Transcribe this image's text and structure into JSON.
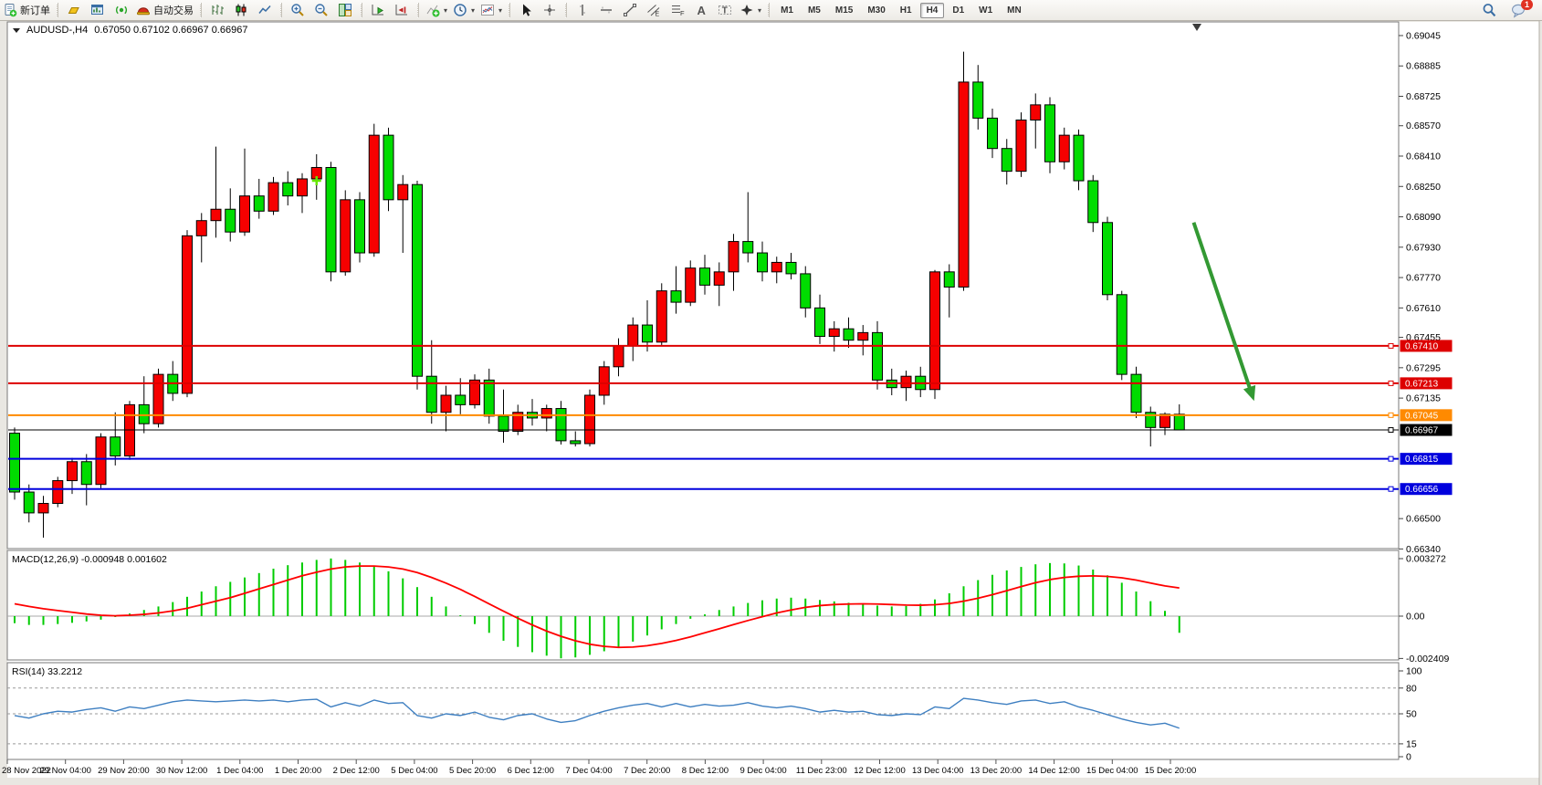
{
  "toolbar": {
    "groups": [
      [
        {
          "icon": "new-order",
          "name": "new-order",
          "label": "新订单"
        }
      ],
      [
        {
          "icon": "gold",
          "name": "gold"
        },
        {
          "icon": "chart-window",
          "name": "chart-window"
        },
        {
          "icon": "signal",
          "name": "signal"
        },
        {
          "icon": "autotrade-hat",
          "name": "autotrade",
          "label": "自动交易"
        }
      ],
      [
        {
          "icon": "bar-chart",
          "name": "bar-chart-mode"
        },
        {
          "icon": "candle-chart",
          "name": "candle-chart-mode"
        },
        {
          "icon": "line-chart",
          "name": "line-chart-mode"
        }
      ],
      [
        {
          "icon": "zoom-in",
          "name": "zoom-in"
        },
        {
          "icon": "zoom-out",
          "name": "zoom-out"
        },
        {
          "icon": "tile-windows",
          "name": "tile-windows"
        }
      ],
      [
        {
          "icon": "auto-scroll",
          "name": "auto-scroll"
        },
        {
          "icon": "chart-shift",
          "name": "chart-shift"
        }
      ],
      [
        {
          "icon": "indicators",
          "name": "indicators",
          "caret": true
        },
        {
          "icon": "periods",
          "name": "periods",
          "caret": true
        },
        {
          "icon": "templates",
          "name": "templates",
          "caret": true
        }
      ],
      [
        {
          "icon": "cursor",
          "name": "cursor-tool"
        },
        {
          "icon": "crosshair",
          "name": "crosshair-tool"
        }
      ],
      [
        {
          "icon": "vline",
          "name": "vertical-line-tool"
        },
        {
          "icon": "hline",
          "name": "horizontal-line-tool"
        },
        {
          "icon": "trendline",
          "name": "trendline-tool"
        },
        {
          "icon": "channel",
          "name": "channel-tool"
        },
        {
          "icon": "fibonacci",
          "name": "fibonacci-tool"
        },
        {
          "icon": "text",
          "name": "text-tool"
        },
        {
          "icon": "text-label",
          "name": "label-tool"
        },
        {
          "icon": "shapes",
          "name": "shapes-tool",
          "caret": true
        }
      ]
    ],
    "timeframes": [
      "M1",
      "M5",
      "M15",
      "M30",
      "H1",
      "H4",
      "D1",
      "W1",
      "MN"
    ],
    "active_timeframe": "H4",
    "notification_badge": "1"
  },
  "chart": {
    "symbol_title": "AUDUSD-,H4",
    "quote": "0.67050 0.67102 0.66967 0.66967",
    "macd_label": "MACD(12,26,9) -0.000948 0.001602",
    "rsi_label": "RSI(14) 33.2212"
  },
  "chart_data": {
    "type": "candlestick",
    "symbol": "AUDUSD-",
    "timeframe": "H4",
    "current_bar": {
      "open": 0.6705,
      "high": 0.67102,
      "low": 0.66967,
      "close": 0.66967
    },
    "colors": {
      "bull": "#f60000",
      "bear": "#00dc00",
      "wick": "#000000",
      "macd_hist": "#00cc00",
      "macd_signal": "#ff0000",
      "rsi_line": "#3e7fc1",
      "arrow": "#339933",
      "marker": "#66e600",
      "level_red": "#dd0000",
      "level_orange": "#ff8a00",
      "level_black": "#000000",
      "level_blue": "#0000dd"
    },
    "price_axis": {
      "ylim": [
        0.66342,
        0.69117
      ],
      "ticks": [
        "0.69045",
        "0.68885",
        "0.68725",
        "0.68570",
        "0.68410",
        "0.68250",
        "0.68090",
        "0.67930",
        "0.67770",
        "0.67610",
        "0.67455",
        "0.67295",
        "0.67135",
        "0.66500",
        "0.66340"
      ]
    },
    "levels": [
      {
        "price": 0.6741,
        "label": "0.67410",
        "color": "#dd0000",
        "width": 2
      },
      {
        "price": 0.67213,
        "label": "0.67213",
        "color": "#dd0000",
        "width": 2
      },
      {
        "price": 0.67045,
        "label": "0.67045",
        "color": "#ff8a00",
        "width": 2
      },
      {
        "price": 0.66967,
        "label": "0.66967",
        "color": "#000000",
        "width": 1
      },
      {
        "price": 0.66815,
        "label": "0.66815",
        "color": "#0000dd",
        "width": 2
      },
      {
        "price": 0.66656,
        "label": "0.66656",
        "color": "#0000dd",
        "width": 2
      }
    ],
    "time_labels": [
      "28 Nov 2022",
      "29 Nov 04:00",
      "29 Nov 20:00",
      "30 Nov 12:00",
      "1 Dec 04:00",
      "1 Dec 20:00",
      "2 Dec 12:00",
      "5 Dec 04:00",
      "5 Dec 20:00",
      "6 Dec 12:00",
      "7 Dec 04:00",
      "7 Dec 20:00",
      "8 Dec 12:00",
      "9 Dec 04:00",
      "11 Dec 23:00",
      "12 Dec 12:00",
      "13 Dec 04:00",
      "13 Dec 20:00",
      "14 Dec 12:00",
      "15 Dec 04:00",
      "15 Dec 20:00"
    ],
    "candles": [
      [
        0.6695,
        0.6698,
        0.666,
        0.6664
      ],
      [
        0.6664,
        0.6668,
        0.6648,
        0.6653
      ],
      [
        0.6653,
        0.6662,
        0.664,
        0.6658
      ],
      [
        0.6658,
        0.6672,
        0.6656,
        0.667
      ],
      [
        0.667,
        0.6682,
        0.6663,
        0.668
      ],
      [
        0.668,
        0.6684,
        0.6657,
        0.6668
      ],
      [
        0.6668,
        0.6695,
        0.6666,
        0.6693
      ],
      [
        0.6693,
        0.6706,
        0.6678,
        0.6683
      ],
      [
        0.6683,
        0.6712,
        0.6681,
        0.671
      ],
      [
        0.671,
        0.6725,
        0.6695,
        0.67
      ],
      [
        0.67,
        0.6729,
        0.6698,
        0.6726
      ],
      [
        0.6726,
        0.6733,
        0.6712,
        0.6716
      ],
      [
        0.6716,
        0.6802,
        0.6714,
        0.6799
      ],
      [
        0.6799,
        0.6811,
        0.6785,
        0.6807
      ],
      [
        0.6807,
        0.6846,
        0.6798,
        0.6813
      ],
      [
        0.6813,
        0.6824,
        0.6796,
        0.6801
      ],
      [
        0.6801,
        0.6845,
        0.6799,
        0.682
      ],
      [
        0.682,
        0.6829,
        0.6808,
        0.6812
      ],
      [
        0.6812,
        0.683,
        0.681,
        0.6827
      ],
      [
        0.6827,
        0.6833,
        0.6815,
        0.682
      ],
      [
        0.682,
        0.6832,
        0.6811,
        0.6829
      ],
      [
        0.6829,
        0.6842,
        0.6818,
        0.6835
      ],
      [
        0.6835,
        0.6838,
        0.6775,
        0.678
      ],
      [
        0.678,
        0.6823,
        0.6778,
        0.6818
      ],
      [
        0.6818,
        0.6822,
        0.6785,
        0.679
      ],
      [
        0.679,
        0.6858,
        0.6788,
        0.6852
      ],
      [
        0.6852,
        0.6856,
        0.6812,
        0.6818
      ],
      [
        0.6818,
        0.6831,
        0.679,
        0.6826
      ],
      [
        0.6826,
        0.6828,
        0.6718,
        0.6725
      ],
      [
        0.6725,
        0.6744,
        0.67,
        0.6706
      ],
      [
        0.6706,
        0.672,
        0.6696,
        0.6715
      ],
      [
        0.6715,
        0.6724,
        0.6705,
        0.671
      ],
      [
        0.671,
        0.6726,
        0.6708,
        0.6723
      ],
      [
        0.6723,
        0.6729,
        0.67,
        0.6704
      ],
      [
        0.6704,
        0.6718,
        0.669,
        0.6696
      ],
      [
        0.6696,
        0.671,
        0.6694,
        0.6706
      ],
      [
        0.6706,
        0.6713,
        0.6699,
        0.6703
      ],
      [
        0.6703,
        0.671,
        0.6696,
        0.6708
      ],
      [
        0.6708,
        0.6712,
        0.6689,
        0.6691
      ],
      [
        0.6691,
        0.6696,
        0.6688,
        0.66895
      ],
      [
        0.66895,
        0.6718,
        0.6688,
        0.6715
      ],
      [
        0.6715,
        0.6733,
        0.671,
        0.673
      ],
      [
        0.673,
        0.6745,
        0.6725,
        0.6741
      ],
      [
        0.6741,
        0.6756,
        0.6733,
        0.6752
      ],
      [
        0.6752,
        0.6765,
        0.6738,
        0.6743
      ],
      [
        0.6743,
        0.6774,
        0.6741,
        0.677
      ],
      [
        0.677,
        0.6783,
        0.6758,
        0.6764
      ],
      [
        0.6764,
        0.6786,
        0.6762,
        0.6782
      ],
      [
        0.6782,
        0.6789,
        0.6768,
        0.6773
      ],
      [
        0.6773,
        0.6785,
        0.6762,
        0.678
      ],
      [
        0.678,
        0.68,
        0.677,
        0.6796
      ],
      [
        0.6796,
        0.6822,
        0.6785,
        0.679
      ],
      [
        0.679,
        0.6796,
        0.6775,
        0.678
      ],
      [
        0.678,
        0.6788,
        0.6774,
        0.6785
      ],
      [
        0.6785,
        0.679,
        0.6776,
        0.6779
      ],
      [
        0.6779,
        0.6783,
        0.6756,
        0.6761
      ],
      [
        0.6761,
        0.6768,
        0.6742,
        0.6746
      ],
      [
        0.6746,
        0.6754,
        0.6738,
        0.675
      ],
      [
        0.675,
        0.6756,
        0.674,
        0.6744
      ],
      [
        0.6744,
        0.6752,
        0.6736,
        0.6748
      ],
      [
        0.6748,
        0.6754,
        0.6718,
        0.6723
      ],
      [
        0.6723,
        0.6729,
        0.6715,
        0.6719
      ],
      [
        0.6719,
        0.6728,
        0.6712,
        0.6725
      ],
      [
        0.6725,
        0.673,
        0.6714,
        0.6718
      ],
      [
        0.6718,
        0.6781,
        0.6713,
        0.678
      ],
      [
        0.678,
        0.6784,
        0.6756,
        0.6772
      ],
      [
        0.6772,
        0.6896,
        0.677,
        0.688
      ],
      [
        0.688,
        0.6889,
        0.6855,
        0.6861
      ],
      [
        0.6861,
        0.6866,
        0.684,
        0.6845
      ],
      [
        0.6845,
        0.685,
        0.6826,
        0.6833
      ],
      [
        0.6833,
        0.6864,
        0.683,
        0.686
      ],
      [
        0.686,
        0.6874,
        0.6845,
        0.6868
      ],
      [
        0.6868,
        0.6872,
        0.6832,
        0.6838
      ],
      [
        0.6838,
        0.6856,
        0.6834,
        0.6852
      ],
      [
        0.6852,
        0.6855,
        0.6823,
        0.6828
      ],
      [
        0.6828,
        0.6831,
        0.6801,
        0.6806
      ],
      [
        0.6806,
        0.6809,
        0.6765,
        0.6768
      ],
      [
        0.6768,
        0.677,
        0.6723,
        0.6726
      ],
      [
        0.6726,
        0.673,
        0.6703,
        0.6706
      ],
      [
        0.6706,
        0.6709,
        0.6688,
        0.6698
      ],
      [
        0.6698,
        0.6706,
        0.6694,
        0.6705
      ],
      [
        0.6705,
        0.67102,
        0.66967,
        0.66967
      ]
    ],
    "macd": {
      "title": "MACD(12,26,9)",
      "current_macd": -0.000948,
      "current_signal": 0.001602,
      "axis_ticks": [
        "0.003272",
        "0.00",
        "-0.002409"
      ],
      "unit": 0.001,
      "hist": [
        -0.4,
        -0.5,
        -0.5,
        -0.45,
        -0.38,
        -0.3,
        -0.2,
        -0.05,
        0.15,
        0.35,
        0.55,
        0.8,
        1.1,
        1.4,
        1.7,
        1.95,
        2.2,
        2.45,
        2.7,
        2.9,
        3.05,
        3.2,
        3.28,
        3.2,
        3.05,
        2.85,
        2.55,
        2.15,
        1.65,
        1.1,
        0.55,
        0.05,
        -0.45,
        -0.95,
        -1.4,
        -1.75,
        -2.05,
        -2.25,
        -2.4,
        -2.35,
        -2.2,
        -2.0,
        -1.75,
        -1.45,
        -1.1,
        -0.75,
        -0.45,
        -0.15,
        0.1,
        0.35,
        0.55,
        0.75,
        0.9,
        1.0,
        1.05,
        1.0,
        0.92,
        0.84,
        0.76,
        0.68,
        0.6,
        0.55,
        0.58,
        0.7,
        0.95,
        1.3,
        1.7,
        2.05,
        2.35,
        2.6,
        2.8,
        2.95,
        3.02,
        3.0,
        2.88,
        2.65,
        2.32,
        1.9,
        1.4,
        0.85,
        0.3,
        -0.948
      ],
      "signal": [
        0.7,
        0.55,
        0.42,
        0.32,
        0.22,
        0.12,
        0.05,
        0.02,
        0.05,
        0.1,
        0.18,
        0.3,
        0.45,
        0.65,
        0.85,
        1.05,
        1.3,
        1.55,
        1.8,
        2.05,
        2.3,
        2.5,
        2.68,
        2.8,
        2.85,
        2.85,
        2.8,
        2.68,
        2.48,
        2.2,
        1.88,
        1.52,
        1.12,
        0.7,
        0.28,
        -0.12,
        -0.5,
        -0.85,
        -1.15,
        -1.4,
        -1.6,
        -1.72,
        -1.78,
        -1.76,
        -1.68,
        -1.55,
        -1.38,
        -1.18,
        -0.95,
        -0.72,
        -0.48,
        -0.25,
        -0.03,
        0.18,
        0.35,
        0.5,
        0.6,
        0.66,
        0.69,
        0.7,
        0.69,
        0.66,
        0.63,
        0.62,
        0.65,
        0.72,
        0.85,
        1.02,
        1.22,
        1.45,
        1.68,
        1.9,
        2.08,
        2.2,
        2.27,
        2.29,
        2.26,
        2.18,
        2.05,
        1.88,
        1.72,
        1.602
      ]
    },
    "rsi": {
      "title": "RSI(14)",
      "current": 33.2212,
      "axis_ticks": [
        100,
        80,
        50,
        15,
        0
      ],
      "levels": [
        80,
        50,
        15
      ],
      "values": [
        48,
        45,
        50,
        53,
        52,
        55,
        57,
        53,
        58,
        56,
        60,
        64,
        66,
        65,
        64,
        65,
        66,
        65,
        66,
        64,
        66,
        67,
        58,
        63,
        59,
        66,
        62,
        63,
        48,
        45,
        50,
        48,
        52,
        46,
        43,
        48,
        50,
        44,
        40,
        42,
        48,
        53,
        57,
        60,
        62,
        58,
        62,
        58,
        61,
        59,
        60,
        63,
        59,
        57,
        59,
        56,
        52,
        54,
        52,
        53,
        49,
        48,
        50,
        49,
        58,
        56,
        68,
        66,
        63,
        61,
        65,
        66,
        62,
        64,
        58,
        54,
        49,
        44,
        40,
        37,
        39,
        33.22
      ]
    },
    "annotations": {
      "down_arrow": {
        "from_bar": 82.0,
        "from_price": 0.6806,
        "to_bar": 86.2,
        "to_price": 0.6712
      },
      "plus_marker": {
        "bar": 21,
        "price": 0.6828
      }
    }
  }
}
